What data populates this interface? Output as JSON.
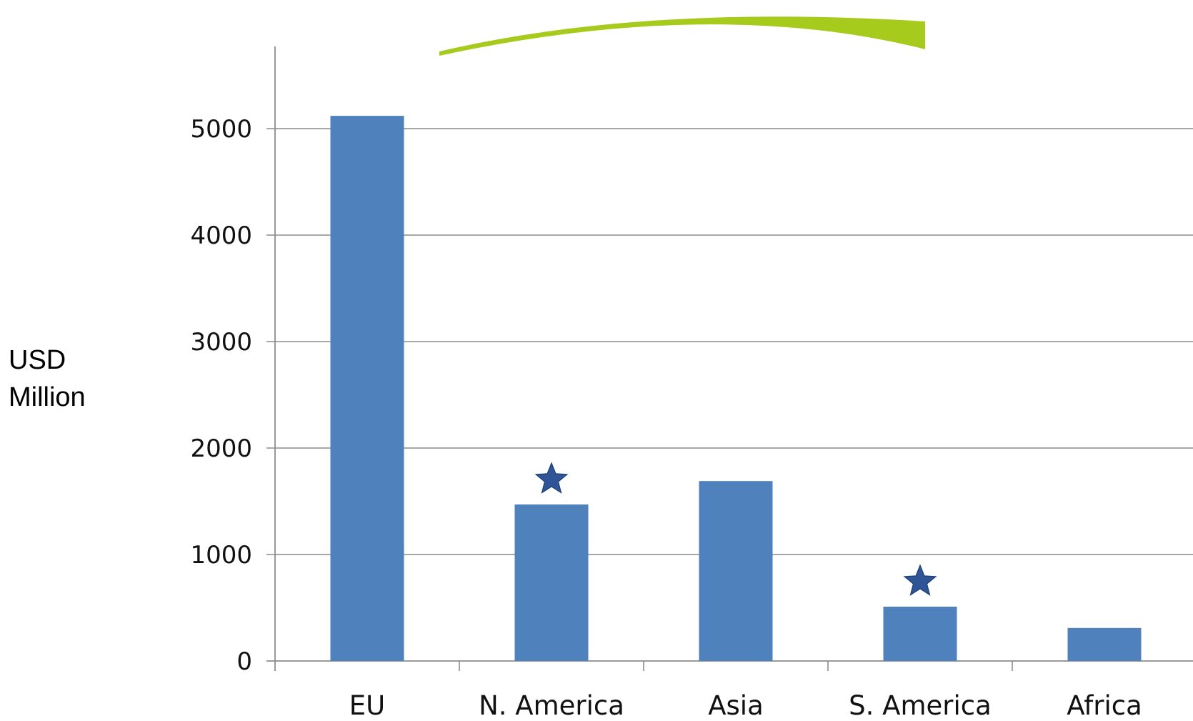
{
  "chart_data": {
    "type": "bar",
    "categories": [
      "EU",
      "N. America",
      "Asia",
      "S. America",
      "Africa"
    ],
    "values": [
      5120,
      1470,
      1690,
      510,
      310
    ],
    "marked_categories": [
      "N. America",
      "S. America"
    ],
    "marker_symbol": "star",
    "title": "",
    "xlabel": "",
    "ylabel": "USD\nMillion",
    "ylim": [
      0,
      5000
    ],
    "yticks": [
      "0",
      "1000",
      "2000",
      "3000",
      "4000",
      "5000"
    ],
    "grid": true,
    "legend": "none",
    "colors": {
      "bar": "#4f81bd",
      "grid": "#8c8c8c",
      "star": "#2f5597",
      "swoosh": "#a6cb1d"
    }
  }
}
